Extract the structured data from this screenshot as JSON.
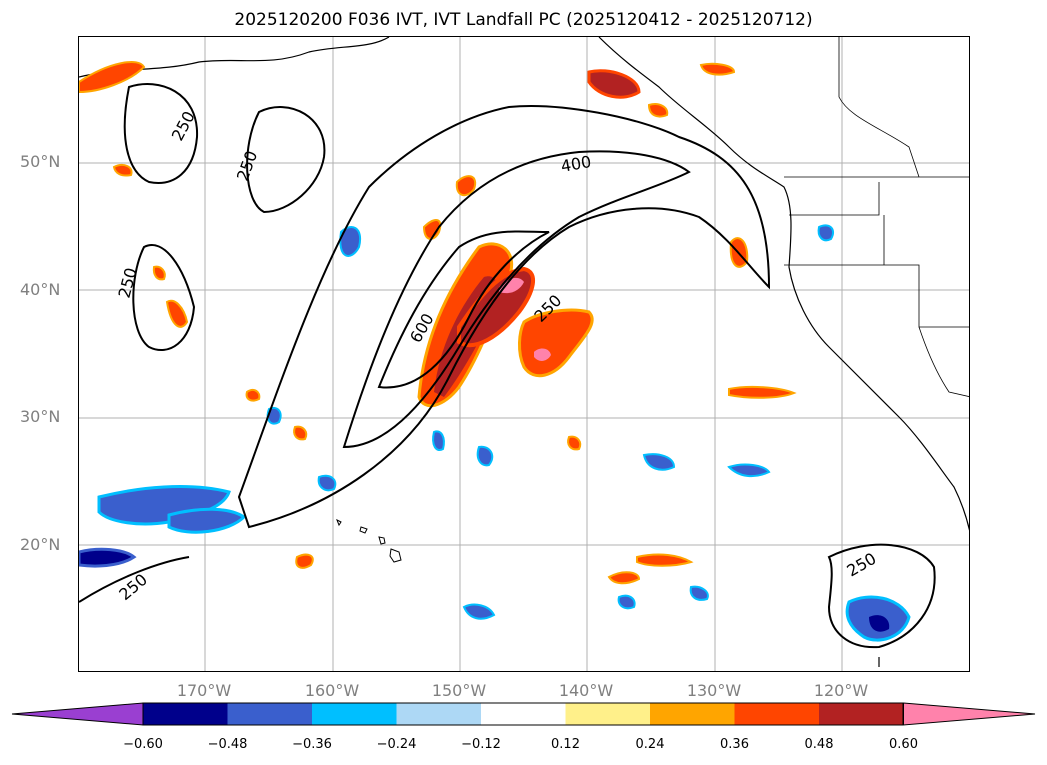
{
  "title": "2025120200 F036 IVT, IVT Landfall PC (2025120412 - 2025120712)",
  "lat_labels": [
    "50°N",
    "40°N",
    "30°N",
    "20°N"
  ],
  "lon_labels": [
    "170°W",
    "160°W",
    "150°W",
    "140°W",
    "130°W",
    "120°W"
  ],
  "contour_labels": [
    "250",
    "250",
    "250",
    "400",
    "600",
    "250",
    "250",
    "250"
  ],
  "colorbar": {
    "ticks": [
      "−0.60",
      "−0.48",
      "−0.36",
      "−0.24",
      "−0.12",
      "0.12",
      "0.24",
      "0.36",
      "0.48",
      "0.60"
    ],
    "colors": [
      "#9a3fd1",
      "#00008b",
      "#3a5fcd",
      "#00bfff",
      "#add8f5",
      "#ffffff",
      "#fff08a",
      "#ffa500",
      "#ff4500",
      "#b22222",
      "#ff82ab"
    ]
  }
}
